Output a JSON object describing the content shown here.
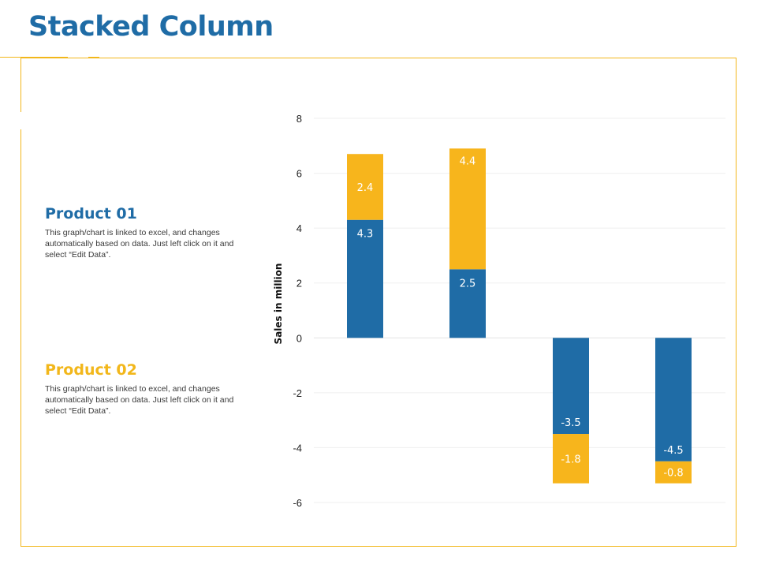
{
  "page": {
    "title": "Stacked Column"
  },
  "products": [
    {
      "name": "Product 01",
      "description": "This graph/chart is linked to excel, and changes automatically based on data. Just left click on it and select “Edit Data”.",
      "color": "#1f6ca6"
    },
    {
      "name": "Product 02",
      "description": "This graph/chart is linked to excel, and changes automatically based on data. Just left click on it and select “Edit Data”.",
      "color": "#f2b71b"
    }
  ],
  "chart_data": {
    "type": "bar",
    "stacked": true,
    "title": "",
    "xlabel": "",
    "ylabel": "Sales in million",
    "ylim": [
      -6,
      8
    ],
    "yticks": [
      8,
      6,
      4,
      2,
      0,
      -2,
      -4,
      -6
    ],
    "grid": true,
    "categories": [
      "",
      "",
      "",
      ""
    ],
    "series": [
      {
        "name": "Product 01",
        "color": "#1f6ca6",
        "values": [
          4.3,
          2.5,
          -3.5,
          -4.5
        ],
        "labels": [
          "4.3",
          "2.5",
          "-3.5",
          "-4.5"
        ]
      },
      {
        "name": "Product 02",
        "color": "#f7b51c",
        "values": [
          2.4,
          4.4,
          -1.8,
          -0.8
        ],
        "labels": [
          "2.4",
          "4.4",
          "-1.8",
          "-0.8"
        ]
      }
    ]
  }
}
